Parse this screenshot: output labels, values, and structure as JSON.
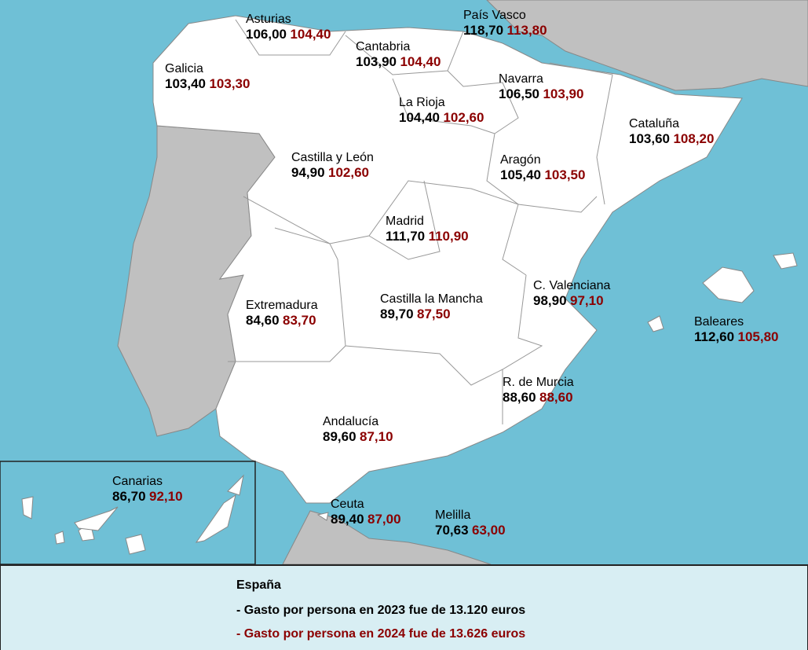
{
  "colors": {
    "sea": "#6fc0d6",
    "land_other": "#c0c0c0",
    "spain": "#ffffff",
    "value_2023": "#000000",
    "value_2024": "#8b0000",
    "legend_bg": "#d8eef3"
  },
  "regions": [
    {
      "name": "Asturias",
      "v2023": "106,00",
      "v2024": "104,40"
    },
    {
      "name": "País Vasco",
      "v2023": "118,70",
      "v2024": "113,80"
    },
    {
      "name": "Cantabria",
      "v2023": "103,90",
      "v2024": "104,40"
    },
    {
      "name": "Galicia",
      "v2023": "103,40",
      "v2024": "103,30"
    },
    {
      "name": "Navarra",
      "v2023": "106,50",
      "v2024": "103,90"
    },
    {
      "name": "La Rioja",
      "v2023": "104,40",
      "v2024": "102,60"
    },
    {
      "name": "Cataluña",
      "v2023": "103,60",
      "v2024": "108,20"
    },
    {
      "name": "Castilla y León",
      "v2023": "94,90",
      "v2024": "102,60"
    },
    {
      "name": "Aragón",
      "v2023": "105,40",
      "v2024": "103,50"
    },
    {
      "name": "Madrid",
      "v2023": "111,70",
      "v2024": "110,90"
    },
    {
      "name": "C. Valenciana",
      "v2023": "98,90",
      "v2024": "97,10"
    },
    {
      "name": "Extremadura",
      "v2023": "84,60",
      "v2024": "83,70"
    },
    {
      "name": "Castilla la Mancha",
      "v2023": "89,70",
      "v2024": "87,50"
    },
    {
      "name": "Baleares",
      "v2023": "112,60",
      "v2024": "105,80"
    },
    {
      "name": "R. de Murcia",
      "v2023": "88,60",
      "v2024": "88,60"
    },
    {
      "name": "Andalucía",
      "v2023": "89,60",
      "v2024": "87,10"
    },
    {
      "name": "Canarias",
      "v2023": "86,70",
      "v2024": "92,10"
    },
    {
      "name": "Ceuta",
      "v2023": "89,40",
      "v2024": "87,00"
    },
    {
      "name": "Melilla",
      "v2023": "70,63",
      "v2024": "63,00"
    }
  ],
  "legend": {
    "title": "España",
    "line_2023": "- Gasto por persona en 2023 fue de 13.120 euros",
    "line_2024": "- Gasto por persona en 2024 fue de 13.626 euros"
  }
}
